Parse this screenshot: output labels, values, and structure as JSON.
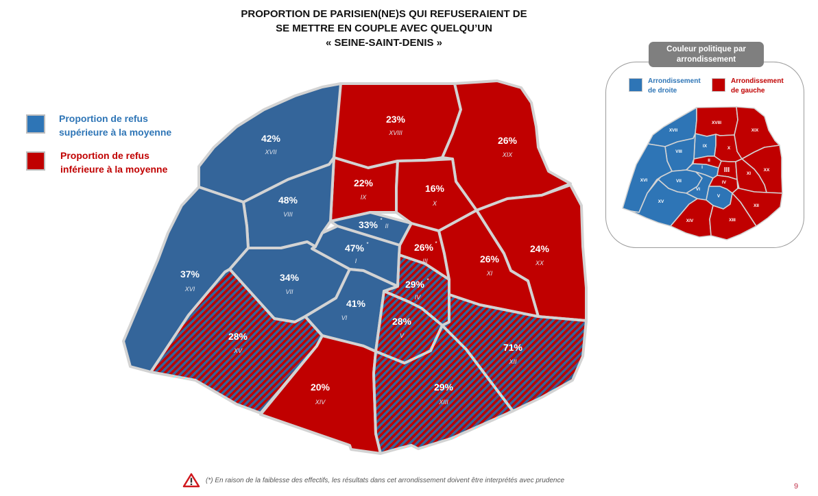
{
  "title": {
    "line1": "PROPORTION DE PARISIEN(NE)S QUI REFUSERAIENT DE",
    "line2": "SE METTRE EN COUPLE AVEC QUELQU’UN",
    "line3": "« SEINE-SAINT-DENIS »"
  },
  "colors": {
    "blue": "#34659a",
    "red": "#c00000",
    "border": "#d0d0d0",
    "legend_blue_text": "#2e75b6",
    "legend_red_text": "#c00000"
  },
  "legend": {
    "above": {
      "line1": "Proportion de refus",
      "line2": "supérieure à la moyenne"
    },
    "below": {
      "line1": "Proportion de refus",
      "line2": "inférieure à la moyenne"
    }
  },
  "arrondissements": {
    "I": {
      "roman": "I",
      "pct": "47%",
      "star": "*"
    },
    "II": {
      "roman": "II",
      "pct": "33%",
      "star": "*"
    },
    "III": {
      "roman": "III",
      "pct": "26%",
      "star": "*"
    },
    "IV": {
      "roman": "IV",
      "pct": "29%",
      "star": "*"
    },
    "V": {
      "roman": "V",
      "pct": "28%"
    },
    "VI": {
      "roman": "VI",
      "pct": "41%"
    },
    "VII": {
      "roman": "VII",
      "pct": "34%"
    },
    "VIII": {
      "roman": "VIII",
      "pct": "48%"
    },
    "IX": {
      "roman": "IX",
      "pct": "22%"
    },
    "X": {
      "roman": "X",
      "pct": "16%"
    },
    "XI": {
      "roman": "XI",
      "pct": "26%"
    },
    "XII": {
      "roman": "XII",
      "pct": "71%"
    },
    "XIII": {
      "roman": "XIII",
      "pct": "29%"
    },
    "XIV": {
      "roman": "XIV",
      "pct": "20%"
    },
    "XV": {
      "roman": "XV",
      "pct": "28%"
    },
    "XVI": {
      "roman": "XVI",
      "pct": "37%"
    },
    "XVII": {
      "roman": "XVII",
      "pct": "42%"
    },
    "XVIII": {
      "roman": "XVIII",
      "pct": "23%"
    },
    "XIX": {
      "roman": "XIX",
      "pct": "26%"
    },
    "XX": {
      "roman": "XX",
      "pct": "24%"
    }
  },
  "inset": {
    "header": "Couleur politique par arrondissement",
    "right_label": {
      "line1": "Arrondissement",
      "line2": "de droite"
    },
    "left_label": {
      "line1": "Arrondissement",
      "line2": "de gauche"
    }
  },
  "footnote": "(*) En raison de la faiblesse des effectifs, les résultats dans cet arrondissement doivent être interprétés avec prudence",
  "page_number": "9"
}
